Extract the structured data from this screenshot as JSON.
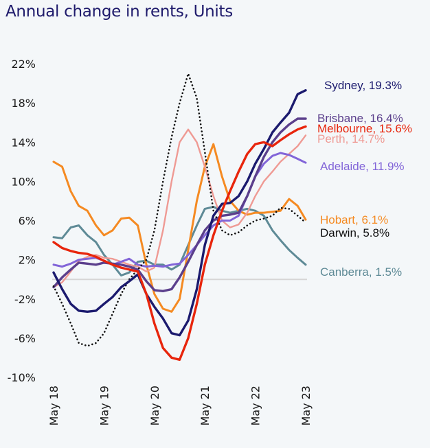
{
  "title": "Annual change in rents, Units",
  "chart_data": {
    "type": "line",
    "title": "Annual change in rents, Units",
    "xlabel": "",
    "ylabel": "",
    "ylim": [
      -10,
      22
    ],
    "xlim": [
      2018.33,
      2023.33
    ],
    "y_ticks": [
      22,
      18,
      14,
      10,
      6,
      2,
      -2,
      -6,
      -10
    ],
    "y_tick_labels": [
      "22%",
      "18%",
      "14%",
      "10%",
      "6%",
      "2%",
      "-2%",
      "-6%",
      "-10%"
    ],
    "x_ticks": [
      2018.33,
      2019.33,
      2020.33,
      2021.33,
      2022.33,
      2023.33
    ],
    "x_tick_labels": [
      "May 18",
      "May 19",
      "May 20",
      "May 21",
      "May 22",
      "May 23"
    ],
    "zero_line": true,
    "grid": false,
    "legend": "direct labels at right",
    "x": [
      2018.33,
      2018.5,
      2018.67,
      2018.83,
      2019.0,
      2019.17,
      2019.33,
      2019.5,
      2019.67,
      2019.83,
      2020.0,
      2020.17,
      2020.33,
      2020.5,
      2020.67,
      2020.83,
      2021.0,
      2021.17,
      2021.33,
      2021.5,
      2021.67,
      2021.83,
      2022.0,
      2022.17,
      2022.33,
      2022.5,
      2022.67,
      2022.83,
      2023.0,
      2023.17,
      2023.33
    ],
    "series": [
      {
        "name": "Sydney",
        "end_label": "Sydney, 19.3%",
        "color": "#1b1a6e",
        "dash": false,
        "values": [
          0.7,
          -1.0,
          -2.5,
          -3.2,
          -3.3,
          -3.2,
          -2.5,
          -1.8,
          -0.8,
          -0.2,
          0.5,
          -1.5,
          -2.8,
          -4.0,
          -5.5,
          -5.7,
          -4.2,
          -1.0,
          3.5,
          6.5,
          7.7,
          7.8,
          8.5,
          10.0,
          11.8,
          13.3,
          15.0,
          16.0,
          17.0,
          18.9,
          19.3
        ]
      },
      {
        "name": "Brisbane",
        "end_label": "Brisbane, 16.4%",
        "color": "#5b3f8c",
        "dash": false,
        "values": [
          -0.8,
          0.2,
          1.0,
          1.7,
          1.6,
          1.5,
          1.7,
          1.6,
          1.5,
          1.3,
          1.0,
          -0.2,
          -1.1,
          -1.2,
          -1.0,
          0.2,
          1.8,
          3.5,
          5.0,
          6.0,
          6.5,
          6.6,
          6.8,
          8.5,
          10.5,
          12.5,
          14.0,
          15.0,
          15.8,
          16.4,
          16.4
        ]
      },
      {
        "name": "Melbourne",
        "end_label": "Melbourne, 15.6%",
        "color": "#e8250c",
        "dash": false,
        "values": [
          3.8,
          3.2,
          2.9,
          2.7,
          2.6,
          2.3,
          1.9,
          1.5,
          1.2,
          1.0,
          0.8,
          -1.5,
          -4.5,
          -7.0,
          -8.0,
          -8.2,
          -6.0,
          -2.5,
          1.5,
          4.5,
          7.0,
          9.0,
          11.0,
          12.8,
          13.8,
          14.0,
          13.6,
          14.2,
          14.8,
          15.3,
          15.6
        ]
      },
      {
        "name": "Perth",
        "end_label": "Perth, 14.7%",
        "color": "#ef9a94",
        "dash": false,
        "values": [
          -0.8,
          -0.3,
          0.8,
          1.9,
          2.3,
          2.5,
          2.2,
          2.1,
          1.8,
          1.5,
          1.3,
          0.8,
          1.2,
          5.0,
          10.0,
          14.0,
          15.3,
          14.0,
          11.5,
          8.5,
          6.0,
          5.3,
          5.6,
          6.8,
          8.5,
          10.0,
          11.0,
          12.0,
          12.8,
          13.6,
          14.7
        ]
      },
      {
        "name": "Adelaide",
        "end_label": "Adelaide, 11.9%",
        "color": "#8265d8",
        "dash": false,
        "values": [
          1.5,
          1.3,
          1.6,
          2.0,
          2.1,
          2.2,
          1.9,
          1.5,
          1.8,
          2.1,
          1.5,
          1.3,
          1.4,
          1.3,
          1.5,
          1.6,
          2.5,
          3.5,
          4.5,
          5.5,
          6.0,
          6.0,
          6.5,
          8.5,
          10.5,
          11.8,
          12.6,
          12.9,
          12.7,
          12.3,
          11.9
        ]
      },
      {
        "name": "Hobart",
        "end_label": "Hobart, 6.1%",
        "color": "#f58a22",
        "dash": false,
        "values": [
          12.0,
          11.5,
          9.0,
          7.5,
          7.0,
          5.5,
          4.5,
          5.0,
          6.2,
          6.3,
          5.5,
          1.5,
          -1.5,
          -3.0,
          -3.3,
          -2.0,
          3.0,
          8.0,
          11.5,
          13.8,
          10.5,
          8.0,
          7.0,
          6.6,
          6.8,
          6.8,
          6.9,
          7.0,
          8.2,
          7.5,
          6.1
        ]
      },
      {
        "name": "Darwin",
        "end_label": "Darwin, 5.8%",
        "color": "#111111",
        "dash": true,
        "values": [
          -0.7,
          -2.5,
          -4.5,
          -6.5,
          -6.8,
          -6.5,
          -5.5,
          -3.5,
          -1.5,
          0.0,
          1.0,
          2.0,
          5.0,
          10.0,
          14.5,
          18.0,
          21.0,
          18.5,
          13.0,
          7.0,
          5.0,
          4.5,
          4.8,
          5.5,
          6.0,
          6.2,
          6.5,
          7.3,
          7.2,
          6.5,
          5.8
        ]
      },
      {
        "name": "Canberra",
        "end_label": "Canberra, 1.5%",
        "color": "#5e8a96",
        "dash": false,
        "values": [
          4.3,
          4.2,
          5.3,
          5.5,
          4.5,
          3.8,
          2.5,
          1.5,
          0.4,
          0.7,
          1.8,
          1.9,
          1.5,
          1.5,
          1.0,
          1.5,
          3.5,
          5.5,
          7.2,
          7.4,
          7.0,
          6.8,
          7.0,
          7.2,
          7.0,
          6.5,
          5.0,
          4.0,
          3.0,
          2.2,
          1.5
        ]
      }
    ]
  }
}
